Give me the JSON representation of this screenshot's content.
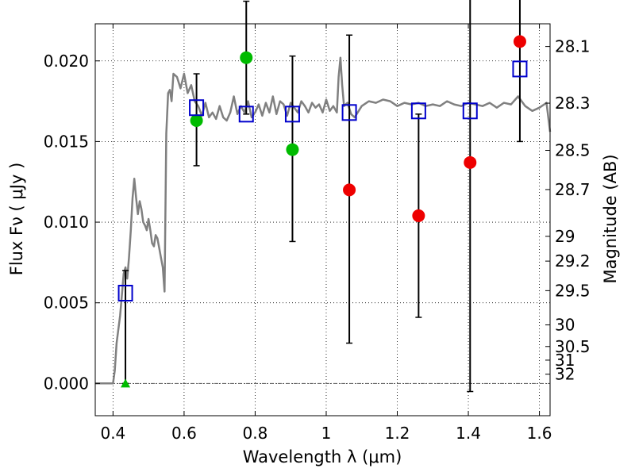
{
  "chart_data": {
    "type": "scatter",
    "title": "",
    "xlabel": "Wavelength  λ (μm)",
    "ylabel": "Flux  Fν  ( μJy )",
    "ylabel_right": "Magnitude (AB)",
    "xlim": [
      0.35,
      1.63
    ],
    "ylim": [
      -0.002,
      0.0223
    ],
    "x_ticks": [
      {
        "value": 0.4,
        "label": "0.4"
      },
      {
        "value": 0.6,
        "label": "0.6"
      },
      {
        "value": 0.8,
        "label": "0.8"
      },
      {
        "value": 1.0,
        "label": "1"
      },
      {
        "value": 1.2,
        "label": "1.2"
      },
      {
        "value": 1.4,
        "label": "1.4"
      },
      {
        "value": 1.6,
        "label": "1.6"
      }
    ],
    "y_ticks": [
      {
        "value": 0.0,
        "label": "0.000"
      },
      {
        "value": 0.005,
        "label": "0.005"
      },
      {
        "value": 0.01,
        "label": "0.010"
      },
      {
        "value": 0.015,
        "label": "0.015"
      },
      {
        "value": 0.02,
        "label": "0.020"
      }
    ],
    "mag_ticks": [
      {
        "value": 28.1,
        "label": "28.1"
      },
      {
        "value": 28.3,
        "label": "28.3"
      },
      {
        "value": 28.5,
        "label": "28.5"
      },
      {
        "value": 28.7,
        "label": "28.7"
      },
      {
        "value": 29.0,
        "label": "29"
      },
      {
        "value": 29.2,
        "label": "29.2"
      },
      {
        "value": 29.5,
        "label": "29.5"
      },
      {
        "value": 30.0,
        "label": "30"
      },
      {
        "value": 30.5,
        "label": "30.5"
      },
      {
        "value": 31.0,
        "label": "31"
      },
      {
        "value": 32.0,
        "label": "32"
      }
    ],
    "grid": true,
    "colors": {
      "sed": "#808080",
      "model": "#0000cc",
      "detected": "#00bb00",
      "faint": "#ee0000",
      "errorbar": "#000000",
      "zero": "#555555"
    },
    "sed_spectrum": {
      "x": [
        0.35,
        0.4,
        0.405,
        0.41,
        0.42,
        0.425,
        0.43,
        0.435,
        0.44,
        0.445,
        0.45,
        0.455,
        0.46,
        0.465,
        0.47,
        0.475,
        0.48,
        0.485,
        0.49,
        0.495,
        0.5,
        0.505,
        0.51,
        0.515,
        0.52,
        0.525,
        0.53,
        0.535,
        0.54,
        0.545,
        0.55,
        0.555,
        0.56,
        0.565,
        0.57,
        0.58,
        0.59,
        0.6,
        0.61,
        0.62,
        0.63,
        0.64,
        0.65,
        0.66,
        0.67,
        0.68,
        0.69,
        0.7,
        0.71,
        0.72,
        0.73,
        0.74,
        0.75,
        0.76,
        0.77,
        0.78,
        0.79,
        0.8,
        0.81,
        0.82,
        0.83,
        0.84,
        0.85,
        0.86,
        0.87,
        0.88,
        0.89,
        0.9,
        0.91,
        0.92,
        0.93,
        0.94,
        0.95,
        0.96,
        0.97,
        0.98,
        0.99,
        1.0,
        1.01,
        1.02,
        1.03,
        1.035,
        1.04,
        1.045,
        1.05,
        1.06,
        1.07,
        1.08,
        1.1,
        1.12,
        1.14,
        1.16,
        1.18,
        1.2,
        1.22,
        1.24,
        1.26,
        1.28,
        1.3,
        1.32,
        1.34,
        1.36,
        1.38,
        1.4,
        1.42,
        1.44,
        1.46,
        1.48,
        1.5,
        1.52,
        1.54,
        1.56,
        1.58,
        1.6,
        1.62,
        1.63
      ],
      "y": [
        0.0,
        0.0,
        0.0008,
        0.0025,
        0.0042,
        0.0055,
        0.0068,
        0.0072,
        0.0065,
        0.0078,
        0.0095,
        0.0115,
        0.0127,
        0.0115,
        0.0105,
        0.0113,
        0.0108,
        0.01,
        0.0098,
        0.0095,
        0.0102,
        0.0095,
        0.0087,
        0.0085,
        0.0092,
        0.009,
        0.0084,
        0.0078,
        0.0072,
        0.0057,
        0.0155,
        0.018,
        0.0182,
        0.0175,
        0.0192,
        0.019,
        0.0183,
        0.0192,
        0.018,
        0.0185,
        0.0175,
        0.0172,
        0.0166,
        0.0174,
        0.0165,
        0.0168,
        0.0164,
        0.0172,
        0.0165,
        0.0163,
        0.0168,
        0.0178,
        0.0167,
        0.0172,
        0.0168,
        0.0175,
        0.0165,
        0.0168,
        0.0173,
        0.0166,
        0.0174,
        0.0168,
        0.0178,
        0.0167,
        0.0175,
        0.0173,
        0.0166,
        0.0174,
        0.0171,
        0.0168,
        0.0175,
        0.0172,
        0.0168,
        0.0174,
        0.0171,
        0.0173,
        0.0168,
        0.0176,
        0.0169,
        0.0172,
        0.0168,
        0.019,
        0.0202,
        0.0185,
        0.0172,
        0.0174,
        0.0167,
        0.0165,
        0.0172,
        0.0175,
        0.0174,
        0.0176,
        0.0175,
        0.0172,
        0.0174,
        0.0173,
        0.0174,
        0.0172,
        0.0173,
        0.0172,
        0.0175,
        0.0173,
        0.0172,
        0.0174,
        0.0173,
        0.0172,
        0.0174,
        0.0171,
        0.0174,
        0.0173,
        0.0178,
        0.0172,
        0.0169,
        0.0171,
        0.0174,
        0.0156
      ]
    },
    "series": [
      {
        "marker": "square",
        "x": [
          0.435,
          0.635,
          0.775,
          0.905,
          1.065,
          1.26,
          1.405,
          1.545
        ],
        "y": [
          0.0056,
          0.0171,
          0.0167,
          0.0167,
          0.0168,
          0.0169,
          0.0169,
          0.0195
        ]
      },
      {
        "marker": "circle",
        "x": [
          0.635,
          0.775,
          0.905
        ],
        "y": [
          0.0163,
          0.0202,
          0.0145
        ],
        "yerr_low": [
          0.0028,
          0.0035,
          0.0057
        ],
        "yerr_high": [
          0.0029,
          0.0035,
          0.0058
        ]
      },
      {
        "marker": "circle",
        "x": [
          1.065,
          1.26,
          1.405,
          1.545
        ],
        "y": [
          0.012,
          0.0104,
          0.0137,
          0.0212
        ],
        "yerr_low": [
          0.0095,
          0.0063,
          0.0142,
          0.0062
        ],
        "yerr_high": [
          0.0096,
          0.0063,
          0.0142,
          0.0062
        ]
      },
      {
        "marker": "triangle",
        "x": [
          0.435
        ],
        "y": [
          0.0
        ],
        "yerr_low": [
          0.0
        ],
        "yerr_high": [
          0.007
        ]
      }
    ]
  }
}
